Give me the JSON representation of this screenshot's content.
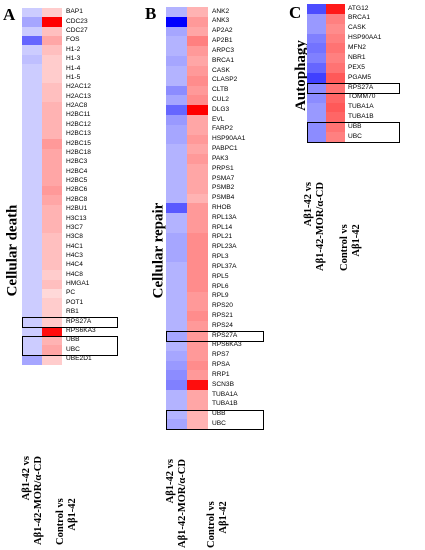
{
  "panels": [
    {
      "letter": "A",
      "title": "Cellular death",
      "col1": [
        "Aβ1-42 vs",
        "Aβ1-42-MOR/α-CD"
      ],
      "col2": [
        "Control vs",
        "Aβ1-42"
      ],
      "genes": [
        "BAP1",
        "CDC23",
        "CDC27",
        "FOS",
        "H1-2",
        "H1-3",
        "H1-4",
        "H1-5",
        "H2AC12",
        "H2AC13",
        "H2AC8",
        "H2BC11",
        "H2BC12",
        "H2BC13",
        "H2BC15",
        "H2BC18",
        "H2BC3",
        "H2BC4",
        "H2BC5",
        "H2BC6",
        "H2BC8",
        "H2BU1",
        "H3C13",
        "H3C7",
        "H3C8",
        "H4C1",
        "H4C3",
        "H4C4",
        "H4C8",
        "HMGA1",
        "PC",
        "POT1",
        "RB1",
        "RPS27A",
        "RPS6KA3",
        "UBB",
        "UBC",
        "UBE2D1"
      ],
      "c1": [
        -0.2,
        -0.35,
        -0.2,
        -0.6,
        -0.2,
        -0.25,
        -0.2,
        -0.2,
        -0.2,
        -0.2,
        -0.2,
        -0.2,
        -0.2,
        -0.2,
        -0.2,
        -0.2,
        -0.2,
        -0.2,
        -0.2,
        -0.2,
        -0.2,
        -0.2,
        -0.2,
        -0.2,
        -0.2,
        -0.2,
        -0.2,
        -0.2,
        -0.2,
        -0.2,
        -0.2,
        -0.2,
        -0.2,
        -0.2,
        -0.2,
        -0.2,
        -0.2,
        -0.35
      ],
      "c2": [
        0.2,
        1.0,
        0.25,
        0.35,
        0.25,
        0.2,
        0.2,
        0.2,
        0.25,
        0.25,
        0.3,
        0.3,
        0.3,
        0.3,
        0.4,
        0.35,
        0.35,
        0.35,
        0.35,
        0.4,
        0.35,
        0.3,
        0.3,
        0.3,
        0.25,
        0.25,
        0.25,
        0.25,
        0.2,
        0.25,
        0.15,
        0.2,
        0.2,
        0.2,
        0.95,
        0.3,
        0.35,
        0.2
      ],
      "boxed": [
        [
          33,
          33
        ],
        [
          35,
          36
        ]
      ]
    },
    {
      "letter": "B",
      "title": "Cellular repair",
      "col1": [
        "Aβ1-42 vs",
        "Aβ1-42-MOR/α-CD"
      ],
      "col2": [
        "Control vs",
        "Aβ1-42"
      ],
      "genes": [
        "ANK2",
        "ANK3",
        "AP2A2",
        "AP2B1",
        "ARPC3",
        "BRCA1",
        "CASK",
        "CLASP2",
        "CLTB",
        "CUL2",
        "DLG3",
        "EVL",
        "FARP2",
        "HSP90AA1",
        "PABPC1",
        "PAK3",
        "PRPS1",
        "PSMA7",
        "PSMB2",
        "PSMB4",
        "RHOB",
        "RPL13A",
        "RPL14",
        "RPL21",
        "RPL23A",
        "RPL3",
        "RPL37A",
        "RPL5",
        "RPL6",
        "RPL9",
        "RPS20",
        "RPS21",
        "RPS24",
        "RPS27A",
        "RPS6KA3",
        "RPS7",
        "RPSA",
        "RRP1",
        "SCN3B",
        "TUBA1A",
        "TUBA1B",
        "UBB",
        "UBC"
      ],
      "c1": [
        -0.3,
        -1.0,
        -0.35,
        -0.3,
        -0.3,
        -0.35,
        -0.3,
        -0.3,
        -0.45,
        -0.35,
        -0.6,
        -0.4,
        -0.35,
        -0.35,
        -0.3,
        -0.3,
        -0.3,
        -0.3,
        -0.3,
        -0.3,
        -0.65,
        -0.3,
        -0.3,
        -0.35,
        -0.35,
        -0.35,
        -0.3,
        -0.3,
        -0.3,
        -0.3,
        -0.3,
        -0.3,
        -0.3,
        -0.35,
        -0.3,
        -0.35,
        -0.4,
        -0.45,
        -0.5,
        -0.3,
        -0.3,
        -0.3,
        -0.35
      ],
      "c2": [
        0.3,
        0.4,
        0.35,
        0.5,
        0.4,
        0.35,
        0.4,
        0.45,
        0.4,
        0.45,
        1.0,
        0.35,
        0.35,
        0.4,
        0.35,
        0.4,
        0.35,
        0.35,
        0.35,
        0.3,
        0.4,
        0.4,
        0.4,
        0.45,
        0.45,
        0.45,
        0.45,
        0.45,
        0.45,
        0.4,
        0.4,
        0.45,
        0.4,
        0.4,
        0.4,
        0.4,
        0.45,
        0.4,
        0.95,
        0.35,
        0.35,
        0.3,
        0.3
      ],
      "boxed": [
        [
          33,
          33
        ],
        [
          41,
          42
        ]
      ]
    },
    {
      "letter": "C",
      "title": "Autophagy",
      "col1": [
        "Aβ1-42 vs",
        "Aβ1-42-MOR/α-CD"
      ],
      "col2": [
        "Control vs",
        "Aβ1-42"
      ],
      "genes": [
        "ATG12",
        "BRCA1",
        "CASK",
        "HSP90AA1",
        "MFN2",
        "NBR1",
        "PEX5",
        "PGAM5",
        "RPS27A",
        "TOMM70",
        "TUBA1A",
        "TUBA1B",
        "UBB",
        "UBC"
      ],
      "c1": [
        -0.7,
        -0.4,
        -0.4,
        -0.5,
        -0.55,
        -0.5,
        -0.6,
        -0.75,
        -0.45,
        -0.45,
        -0.4,
        -0.4,
        -0.45,
        -0.45
      ],
      "c2": [
        0.9,
        0.5,
        0.45,
        0.5,
        0.55,
        0.5,
        0.55,
        0.65,
        0.55,
        0.6,
        0.65,
        0.6,
        0.55,
        0.5
      ],
      "boxed": [
        [
          8,
          8
        ],
        [
          12,
          13
        ]
      ]
    }
  ]
}
